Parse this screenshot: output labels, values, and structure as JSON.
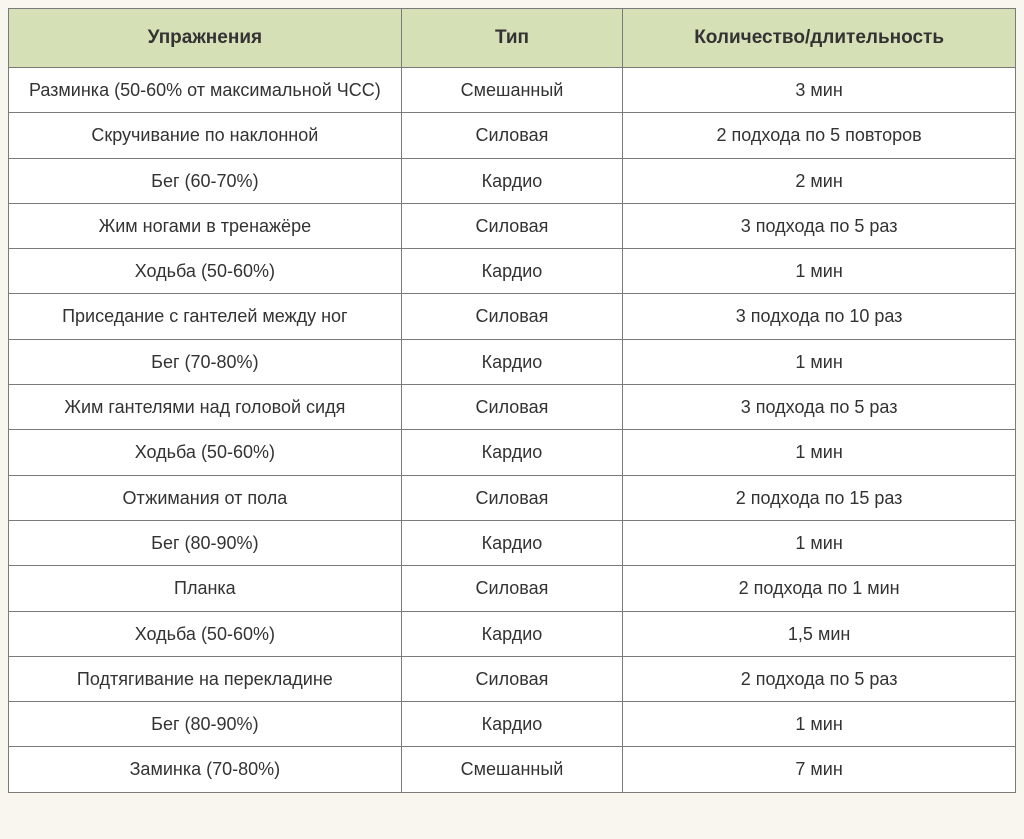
{
  "table": {
    "type": "table",
    "columns": [
      "Упражнения",
      "Тип",
      "Количество/длительность"
    ],
    "column_widths_pct": [
      39,
      22,
      39
    ],
    "header_bg_color": "#d5e0b6",
    "border_color": "#7a7a7a",
    "cell_bg_color": "#ffffff",
    "page_bg_color": "#f8f6ee",
    "text_color": "#333333",
    "header_fontsize": 19,
    "header_fontweight": "bold",
    "cell_fontsize": 18,
    "font_family": "Verdana, Geneva, sans-serif",
    "rows": [
      [
        "Разминка (50-60% от максимальной ЧСС)",
        "Смешанный",
        "3 мин"
      ],
      [
        "Скручивание по наклонной",
        "Силовая",
        "2 подхода по 5 повторов"
      ],
      [
        "Бег (60-70%)",
        "Кардио",
        "2 мин"
      ],
      [
        "Жим ногами в тренажёре",
        "Силовая",
        "3 подхода по 5 раз"
      ],
      [
        "Ходьба (50-60%)",
        "Кардио",
        "1 мин"
      ],
      [
        "Приседание с гантелей между ног",
        "Силовая",
        "3 подхода по 10 раз"
      ],
      [
        "Бег (70-80%)",
        "Кардио",
        "1 мин"
      ],
      [
        "Жим гантелями над головой сидя",
        "Силовая",
        "3 подхода по 5 раз"
      ],
      [
        "Ходьба (50-60%)",
        "Кардио",
        "1 мин"
      ],
      [
        "Отжимания от пола",
        "Силовая",
        "2 подхода по 15 раз"
      ],
      [
        "Бег (80-90%)",
        "Кардио",
        "1 мин"
      ],
      [
        "Планка",
        "Силовая",
        "2 подхода по 1 мин"
      ],
      [
        "Ходьба (50-60%)",
        "Кардио",
        "1,5 мин"
      ],
      [
        "Подтягивание на перекладине",
        "Силовая",
        "2 подхода по 5 раз"
      ],
      [
        "Бег (80-90%)",
        "Кардио",
        "1 мин"
      ],
      [
        "Заминка (70-80%)",
        "Смешанный",
        "7 мин"
      ]
    ]
  }
}
